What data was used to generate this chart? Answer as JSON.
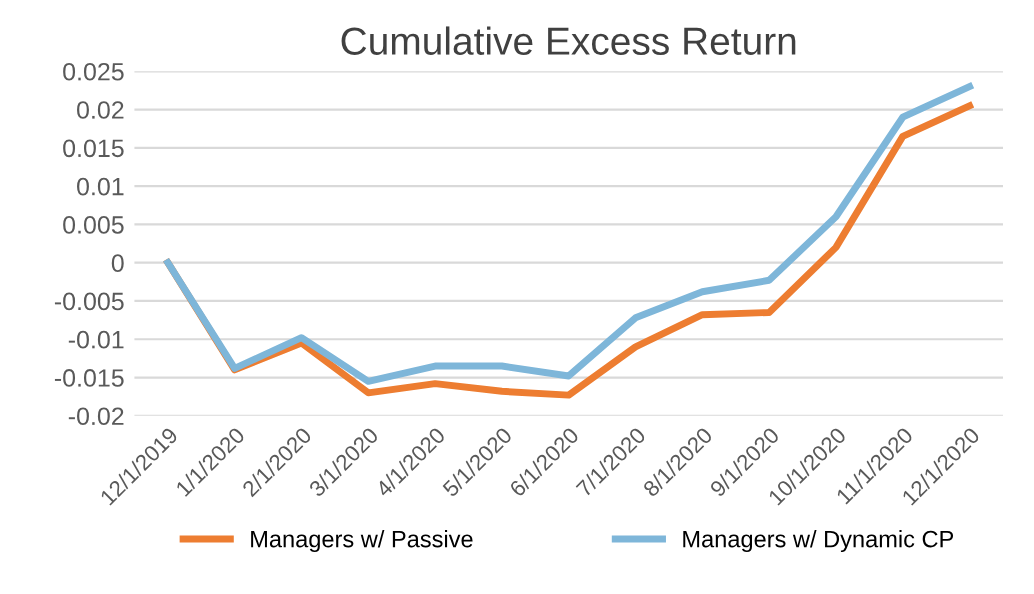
{
  "chart_data": {
    "type": "line",
    "title": "Cumulative Excess Return",
    "categories": [
      "12/1/2019",
      "1/1/2020",
      "2/1/2020",
      "3/1/2020",
      "4/1/2020",
      "5/1/2020",
      "6/1/2020",
      "7/1/2020",
      "8/1/2020",
      "9/1/2020",
      "10/1/2020",
      "11/1/2020",
      "12/1/2020"
    ],
    "series": [
      {
        "name": "Managers w/ Passive",
        "color": "#ed7d31",
        "values": [
          0,
          -0.014,
          -0.0105,
          -0.017,
          -0.0158,
          -0.0168,
          -0.0173,
          -0.011,
          -0.0068,
          -0.0065,
          0.002,
          0.0165,
          0.0205
        ]
      },
      {
        "name": "Managers w/ Dynamic CP",
        "color": "#7eb6d9",
        "values": [
          0,
          -0.0138,
          -0.0098,
          -0.0155,
          -0.0135,
          -0.0135,
          -0.0148,
          -0.0072,
          -0.0038,
          -0.0023,
          0.006,
          0.019,
          0.023
        ]
      }
    ],
    "ylim": [
      -0.02,
      0.025
    ],
    "yticks": [
      -0.02,
      -0.015,
      -0.01,
      -0.005,
      0,
      0.005,
      0.01,
      0.015,
      0.02,
      0.025
    ],
    "grid": "y",
    "legend": "bottom",
    "marker": "none",
    "line_style": "solid"
  }
}
